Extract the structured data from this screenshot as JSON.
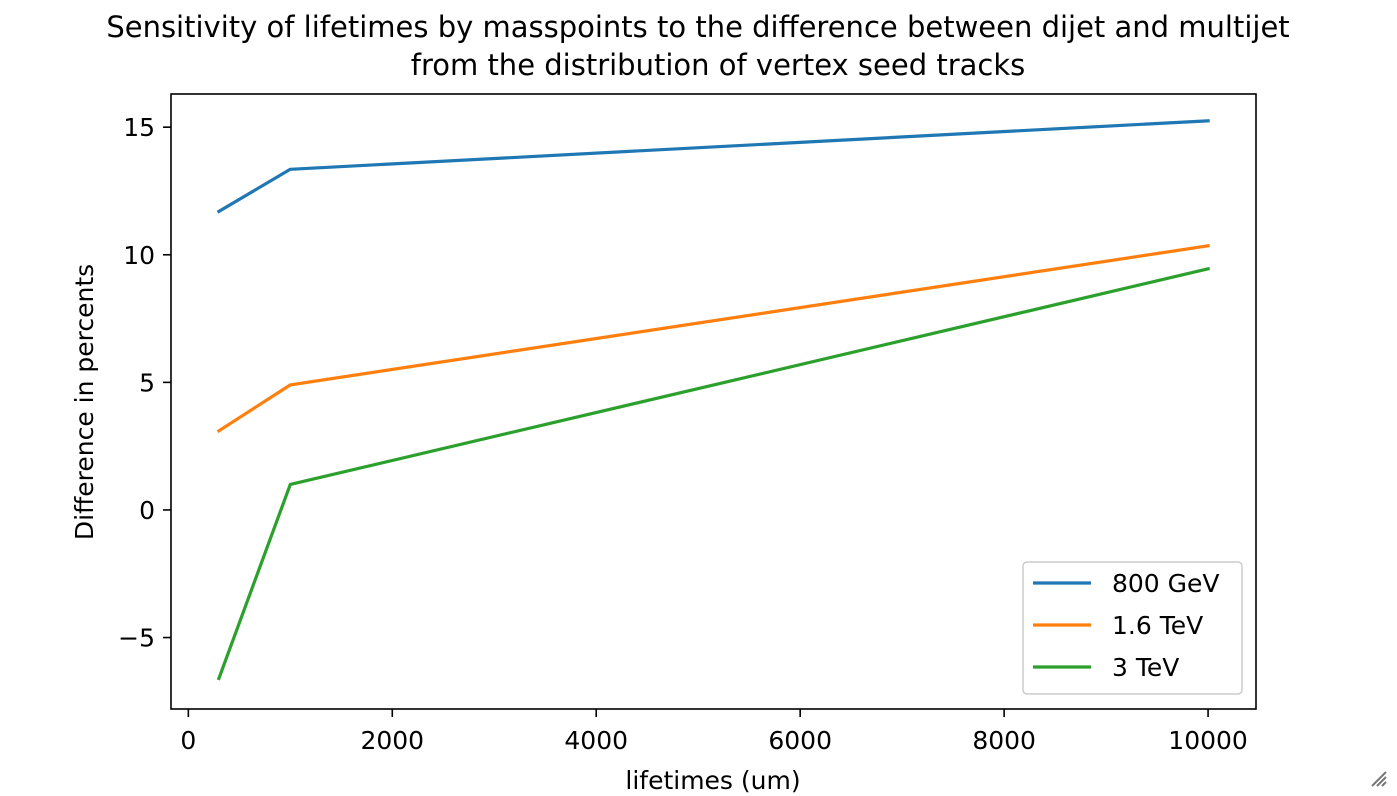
{
  "chart_data": {
    "type": "line",
    "title": [
      "Sensitivity of lifetimes by masspoints to the difference between dijet and multijet",
      "from the distribution of vertex seed tracks"
    ],
    "xlabel": "lifetimes (um)",
    "ylabel": "Difference in percents",
    "xlim": [
      -170,
      10470
    ],
    "ylim": [
      -7.8,
      16.3
    ],
    "xticks": [
      0,
      2000,
      4000,
      6000,
      8000,
      10000
    ],
    "xtick_labels": [
      "0",
      "2000",
      "4000",
      "6000",
      "8000",
      "10000"
    ],
    "yticks": [
      -5,
      0,
      5,
      10,
      15
    ],
    "ytick_labels": [
      "−5",
      "0",
      "5",
      "10",
      "15"
    ],
    "grid": false,
    "legend_position": "lower-right",
    "x": [
      300,
      1000,
      10000
    ],
    "series": [
      {
        "name": "800 GeV",
        "color": "#1f77b4",
        "values": [
          11.7,
          13.35,
          15.25
        ]
      },
      {
        "name": "1.6 TeV",
        "color": "#ff7f0e",
        "values": [
          3.1,
          4.9,
          10.35
        ]
      },
      {
        "name": "3 TeV",
        "color": "#2ca02c",
        "values": [
          -6.6,
          1.0,
          9.45
        ]
      }
    ]
  }
}
